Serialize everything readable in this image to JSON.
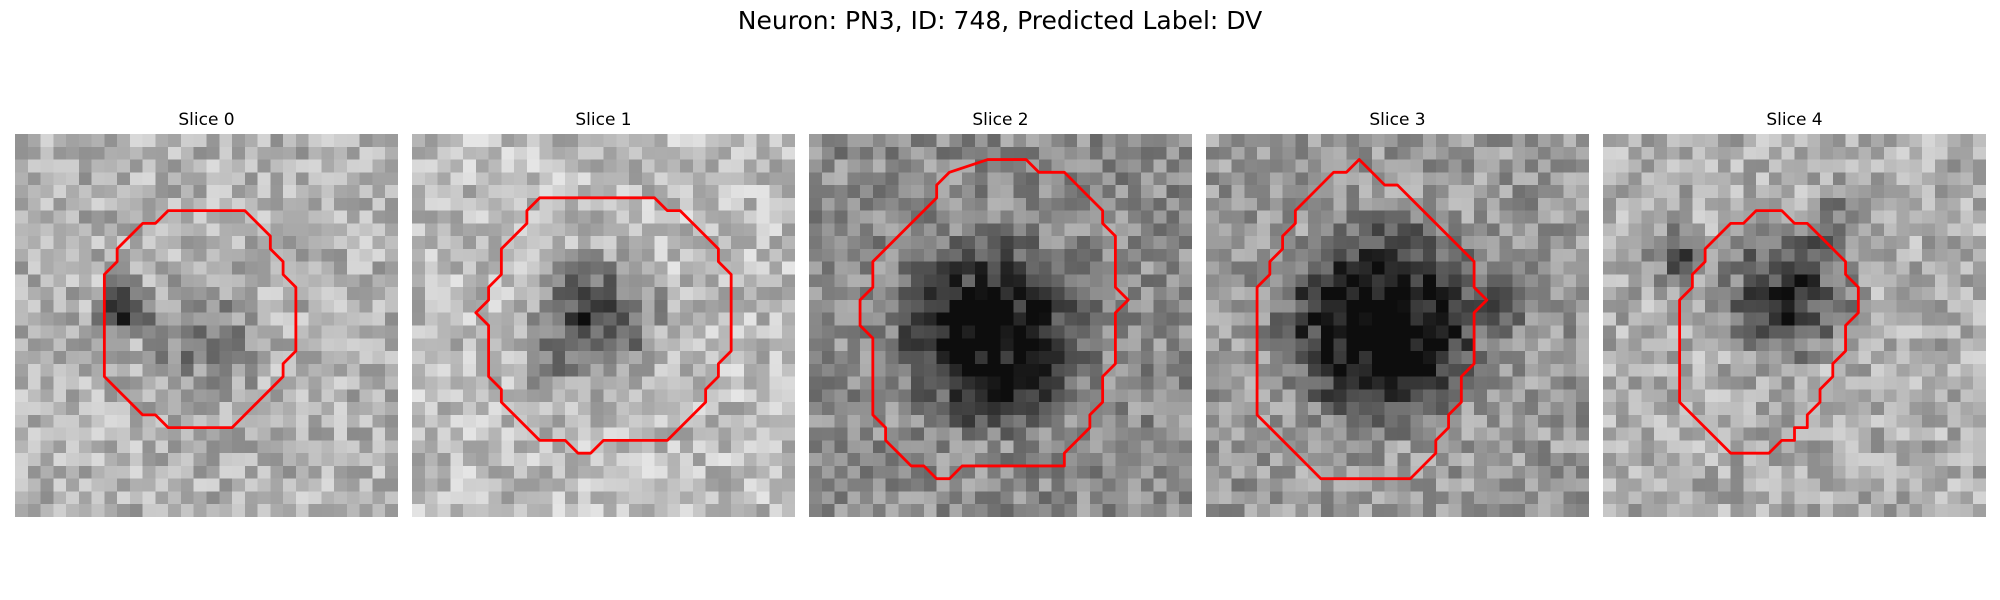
{
  "figure": {
    "title": "Neuron: PN3, ID: 748, Predicted Label: DV"
  },
  "contour_color": "#ff0000",
  "panels": [
    {
      "title": "Slice 0",
      "texture": 0.7,
      "dark": [
        [
          0.28,
          0.46,
          0.1,
          0.62
        ],
        [
          0.5,
          0.55,
          0.2,
          0.25
        ]
      ],
      "contour": [
        [
          14,
          6
        ],
        [
          18,
          6
        ],
        [
          19,
          7
        ],
        [
          20,
          8
        ],
        [
          20,
          9
        ],
        [
          21,
          10
        ],
        [
          21,
          11
        ],
        [
          22,
          12
        ],
        [
          22,
          14
        ],
        [
          22,
          16
        ],
        [
          22,
          17
        ],
        [
          21,
          18
        ],
        [
          21,
          19
        ],
        [
          20,
          20
        ],
        [
          19,
          21
        ],
        [
          18,
          22
        ],
        [
          17,
          23
        ],
        [
          12,
          23
        ],
        [
          11,
          22
        ],
        [
          10,
          22
        ],
        [
          9,
          21
        ],
        [
          8,
          20
        ],
        [
          7,
          19
        ],
        [
          7,
          17
        ],
        [
          7,
          15
        ],
        [
          7,
          13
        ],
        [
          7,
          11
        ],
        [
          8,
          10
        ],
        [
          8,
          9
        ],
        [
          9,
          8
        ],
        [
          10,
          7
        ],
        [
          11,
          7
        ],
        [
          12,
          6
        ]
      ]
    },
    {
      "title": "Slice 1",
      "texture": 0.74,
      "dark": [
        [
          0.48,
          0.48,
          0.22,
          0.55
        ],
        [
          0.35,
          0.62,
          0.1,
          0.2
        ]
      ],
      "contour": [
        [
          10,
          5
        ],
        [
          15,
          5
        ],
        [
          19,
          5
        ],
        [
          20,
          6
        ],
        [
          21,
          6
        ],
        [
          22,
          7
        ],
        [
          23,
          8
        ],
        [
          24,
          9
        ],
        [
          24,
          10
        ],
        [
          25,
          11
        ],
        [
          25,
          13
        ],
        [
          25,
          15
        ],
        [
          25,
          17
        ],
        [
          24,
          18
        ],
        [
          24,
          19
        ],
        [
          23,
          20
        ],
        [
          23,
          21
        ],
        [
          22,
          22
        ],
        [
          21,
          23
        ],
        [
          20,
          24
        ],
        [
          15,
          24
        ],
        [
          14,
          25
        ],
        [
          13,
          25
        ],
        [
          12,
          24
        ],
        [
          10,
          24
        ],
        [
          9,
          23
        ],
        [
          8,
          22
        ],
        [
          7,
          21
        ],
        [
          7,
          20
        ],
        [
          6,
          19
        ],
        [
          6,
          17
        ],
        [
          6,
          15
        ],
        [
          5,
          14
        ],
        [
          6,
          13
        ],
        [
          6,
          12
        ],
        [
          7,
          11
        ],
        [
          7,
          9
        ],
        [
          8,
          8
        ],
        [
          9,
          7
        ],
        [
          9,
          6
        ]
      ]
    },
    {
      "title": "Slice 2",
      "texture": 0.55,
      "dark": [
        [
          0.48,
          0.52,
          0.3,
          0.8
        ]
      ],
      "contour": [
        [
          11,
          3
        ],
        [
          14,
          2
        ],
        [
          17,
          2
        ],
        [
          18,
          3
        ],
        [
          20,
          3
        ],
        [
          21,
          4
        ],
        [
          22,
          5
        ],
        [
          23,
          6
        ],
        [
          23,
          7
        ],
        [
          24,
          8
        ],
        [
          24,
          10
        ],
        [
          24,
          12
        ],
        [
          25,
          13
        ],
        [
          24,
          14
        ],
        [
          24,
          16
        ],
        [
          24,
          18
        ],
        [
          23,
          19
        ],
        [
          23,
          21
        ],
        [
          22,
          22
        ],
        [
          22,
          23
        ],
        [
          21,
          24
        ],
        [
          20,
          25
        ],
        [
          20,
          26
        ],
        [
          19,
          26
        ],
        [
          12,
          26
        ],
        [
          11,
          27
        ],
        [
          10,
          27
        ],
        [
          9,
          26
        ],
        [
          8,
          26
        ],
        [
          7,
          25
        ],
        [
          6,
          24
        ],
        [
          6,
          23
        ],
        [
          5,
          22
        ],
        [
          5,
          20
        ],
        [
          5,
          18
        ],
        [
          5,
          16
        ],
        [
          4,
          15
        ],
        [
          4,
          13
        ],
        [
          5,
          12
        ],
        [
          5,
          10
        ],
        [
          6,
          9
        ],
        [
          7,
          8
        ],
        [
          8,
          7
        ],
        [
          9,
          6
        ],
        [
          10,
          5
        ],
        [
          10,
          4
        ]
      ]
    },
    {
      "title": "Slice 3",
      "texture": 0.6,
      "dark": [
        [
          0.46,
          0.5,
          0.32,
          0.92
        ],
        [
          0.78,
          0.45,
          0.1,
          0.35
        ]
      ],
      "contour": [
        [
          10,
          3
        ],
        [
          11,
          3
        ],
        [
          12,
          2
        ],
        [
          13,
          3
        ],
        [
          14,
          4
        ],
        [
          15,
          4
        ],
        [
          16,
          5
        ],
        [
          17,
          6
        ],
        [
          18,
          7
        ],
        [
          19,
          8
        ],
        [
          20,
          9
        ],
        [
          21,
          10
        ],
        [
          21,
          12
        ],
        [
          22,
          13
        ],
        [
          21,
          14
        ],
        [
          21,
          16
        ],
        [
          21,
          18
        ],
        [
          20,
          19
        ],
        [
          20,
          21
        ],
        [
          19,
          22
        ],
        [
          19,
          23
        ],
        [
          18,
          24
        ],
        [
          18,
          25
        ],
        [
          17,
          26
        ],
        [
          16,
          27
        ],
        [
          9,
          27
        ],
        [
          8,
          26
        ],
        [
          7,
          25
        ],
        [
          6,
          24
        ],
        [
          5,
          23
        ],
        [
          4,
          22
        ],
        [
          4,
          20
        ],
        [
          4,
          18
        ],
        [
          4,
          16
        ],
        [
          4,
          14
        ],
        [
          4,
          12
        ],
        [
          5,
          11
        ],
        [
          5,
          10
        ],
        [
          6,
          9
        ],
        [
          6,
          8
        ],
        [
          7,
          7
        ],
        [
          7,
          6
        ],
        [
          8,
          5
        ],
        [
          9,
          4
        ]
      ]
    },
    {
      "title": "Slice 4",
      "texture": 0.68,
      "dark": [
        [
          0.48,
          0.42,
          0.22,
          0.6
        ],
        [
          0.2,
          0.32,
          0.1,
          0.45
        ],
        [
          0.62,
          0.22,
          0.12,
          0.3
        ]
      ],
      "contour": [
        [
          10,
          7
        ],
        [
          11,
          7
        ],
        [
          12,
          6
        ],
        [
          13,
          6
        ],
        [
          14,
          6
        ],
        [
          15,
          7
        ],
        [
          16,
          7
        ],
        [
          17,
          8
        ],
        [
          18,
          9
        ],
        [
          19,
          10
        ],
        [
          19,
          11
        ],
        [
          20,
          12
        ],
        [
          20,
          14
        ],
        [
          19,
          15
        ],
        [
          19,
          17
        ],
        [
          18,
          18
        ],
        [
          18,
          19
        ],
        [
          17,
          20
        ],
        [
          17,
          21
        ],
        [
          16,
          22
        ],
        [
          16,
          23
        ],
        [
          15,
          23
        ],
        [
          15,
          24
        ],
        [
          14,
          24
        ],
        [
          13,
          25
        ],
        [
          10,
          25
        ],
        [
          9,
          24
        ],
        [
          8,
          23
        ],
        [
          7,
          22
        ],
        [
          6,
          21
        ],
        [
          6,
          19
        ],
        [
          6,
          17
        ],
        [
          6,
          15
        ],
        [
          6,
          13
        ],
        [
          7,
          12
        ],
        [
          7,
          11
        ],
        [
          8,
          10
        ],
        [
          8,
          9
        ],
        [
          9,
          8
        ]
      ]
    }
  ]
}
